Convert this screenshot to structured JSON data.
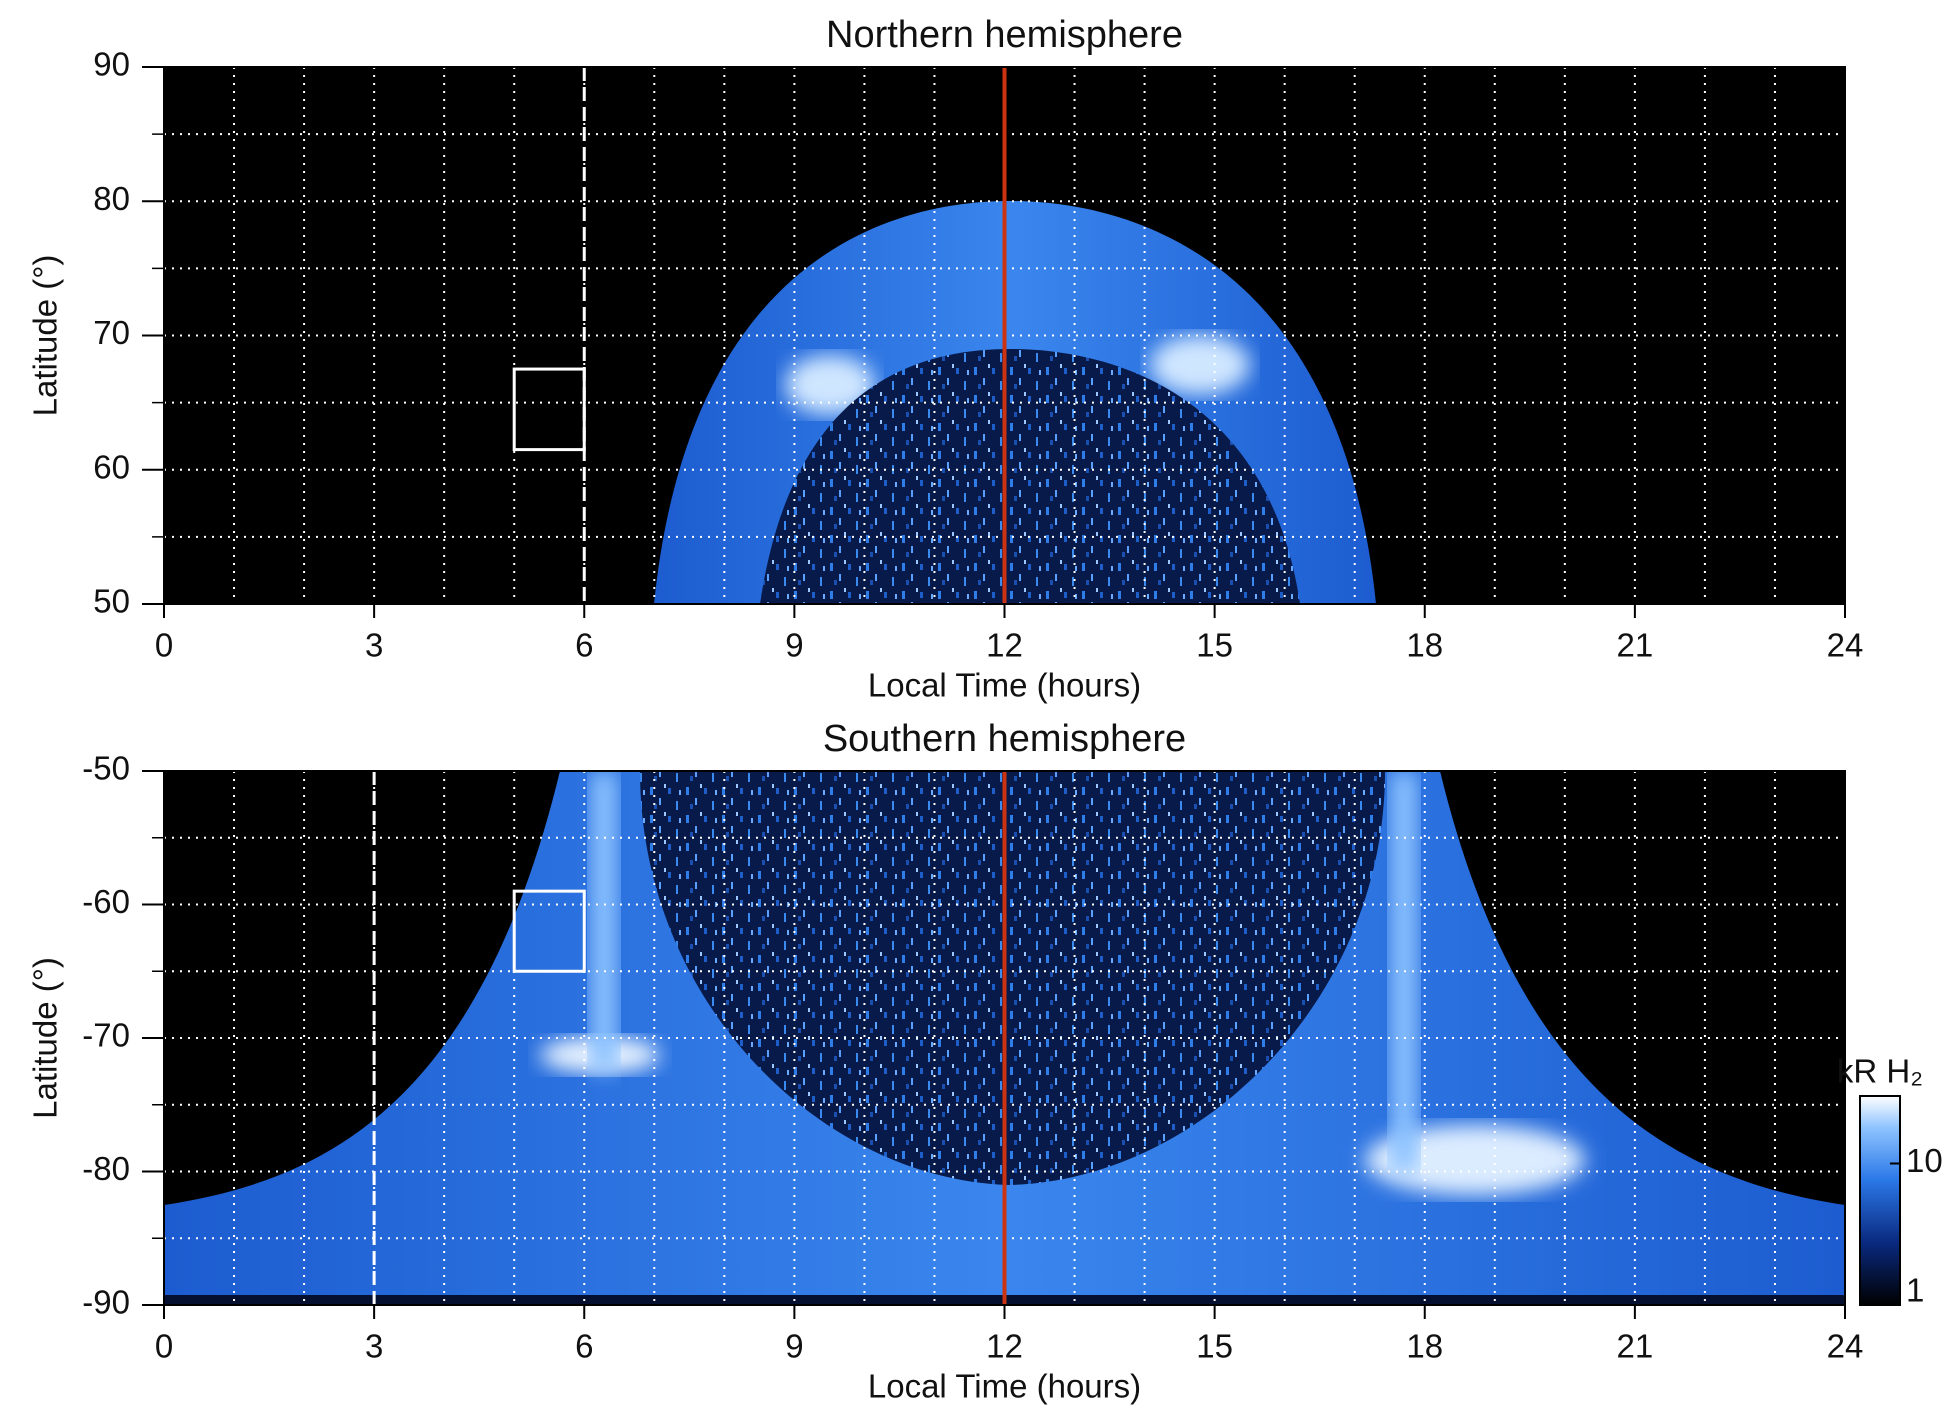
{
  "chart_data": [
    {
      "type": "heatmap",
      "title": "Northern hemisphere",
      "x_label": "Local Time (hours)",
      "y_label": "Latitude (°)",
      "xlim": [
        0,
        24
      ],
      "xticks": [
        0,
        3,
        6,
        9,
        12,
        15,
        18,
        21,
        24
      ],
      "ylim": [
        50,
        90
      ],
      "yticks": [
        50,
        60,
        70,
        80,
        90
      ],
      "grid": true,
      "xgrid_step": 1,
      "ygrid_step": 5,
      "noon_line": {
        "x": 12,
        "color": "#cc3311"
      },
      "dashed_line": {
        "x": 6
      },
      "box": {
        "x": [
          5,
          6
        ],
        "y": [
          61.5,
          67.5
        ]
      }
    },
    {
      "type": "heatmap",
      "title": "Southern hemisphere",
      "x_label": "Local Time (hours)",
      "y_label": "Latitude (°)",
      "xlim": [
        0,
        24
      ],
      "xticks": [
        0,
        3,
        6,
        9,
        12,
        15,
        18,
        21,
        24
      ],
      "ylim": [
        -90,
        -50
      ],
      "yticks": [
        -90,
        -80,
        -70,
        -60,
        -50
      ],
      "grid": true,
      "xgrid_step": 1,
      "ygrid_step": 5,
      "noon_line": {
        "x": 12,
        "color": "#cc3311"
      },
      "dashed_line": {
        "x": 3
      },
      "box": {
        "x": [
          5,
          6
        ],
        "y": [
          -65,
          -59
        ]
      }
    },
    {
      "type": "colorbar",
      "label": "kR H₂",
      "scale": "log",
      "ylim": [
        1,
        30
      ],
      "yticks": [
        1,
        10
      ]
    }
  ]
}
